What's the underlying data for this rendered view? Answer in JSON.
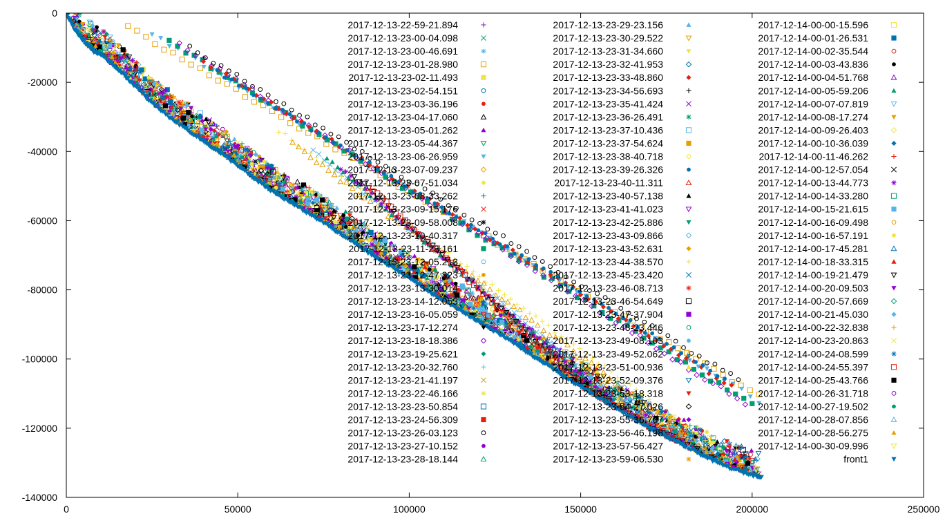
{
  "chart_data": {
    "type": "scatter",
    "title": "",
    "xlabel": "",
    "ylabel": "",
    "xlim": [
      0,
      250000
    ],
    "ylim": [
      -140000,
      0
    ],
    "x_ticks": [
      0,
      50000,
      100000,
      150000,
      200000,
      250000
    ],
    "y_ticks": [
      0,
      -20000,
      -40000,
      -60000,
      -80000,
      -100000,
      -120000,
      -140000
    ],
    "grid": false,
    "legend_placement": "inside, top-right, three columns",
    "colors": [
      "#9400d3",
      "#009e73",
      "#56b4e9",
      "#e69f00",
      "#f0e442",
      "#0072b2",
      "#e51e10",
      "#000000"
    ],
    "legend": [
      {
        "name": "2017-12-13-22-59-21.894",
        "marker": "plus",
        "color": "#9400d3"
      },
      {
        "name": "2017-12-13-23-00-04.098",
        "marker": "cross",
        "color": "#009e73"
      },
      {
        "name": "2017-12-13-23-00-46.691",
        "marker": "star",
        "color": "#56b4e9"
      },
      {
        "name": "2017-12-13-23-01-28.980",
        "marker": "square-open",
        "color": "#e69f00"
      },
      {
        "name": "2017-12-13-23-02-11.493",
        "marker": "square-filled",
        "color": "#f0e442"
      },
      {
        "name": "2017-12-13-23-02-54.151",
        "marker": "circle-open",
        "color": "#0072b2"
      },
      {
        "name": "2017-12-13-23-03-36.196",
        "marker": "circle-filled",
        "color": "#e51e10"
      },
      {
        "name": "2017-12-13-23-04-17.060",
        "marker": "triangle-open",
        "color": "#000000"
      },
      {
        "name": "2017-12-13-23-05-01.262",
        "marker": "triangle-filled",
        "color": "#9400d3"
      },
      {
        "name": "2017-12-13-23-05-44.367",
        "marker": "triangle-down-open",
        "color": "#009e73"
      },
      {
        "name": "2017-12-13-23-06-26.959",
        "marker": "triangle-down-filled",
        "color": "#56b4e9"
      },
      {
        "name": "2017-12-13-23-07-09.237",
        "marker": "diamond-open",
        "color": "#e69f00"
      },
      {
        "name": "2017-12-13-23-07-51.034",
        "marker": "diamond-filled",
        "color": "#f0e442"
      },
      {
        "name": "2017-12-13-23-08-33.262",
        "marker": "plus",
        "color": "#0072b2"
      },
      {
        "name": "2017-12-13-23-09-15.176",
        "marker": "cross",
        "color": "#e51e10"
      },
      {
        "name": "2017-12-13-23-09-58.008",
        "marker": "star",
        "color": "#000000"
      },
      {
        "name": "2017-12-13-23-10-40.317",
        "marker": "square-open",
        "color": "#9400d3"
      },
      {
        "name": "2017-12-13-23-11-23.161",
        "marker": "square-filled",
        "color": "#009e73"
      },
      {
        "name": "2017-12-13-23-12-05.213",
        "marker": "circle-open",
        "color": "#56b4e9"
      },
      {
        "name": "2017-12-13-23-12-47.323",
        "marker": "circle-filled",
        "color": "#e69f00"
      },
      {
        "name": "2017-12-13-23-13-30.014",
        "marker": "triangle-open",
        "color": "#f0e442"
      },
      {
        "name": "2017-12-13-23-14-12.053",
        "marker": "triangle-filled",
        "color": "#0072b2"
      },
      {
        "name": "2017-12-13-23-16-05.059",
        "marker": "triangle-down-open",
        "color": "#e51e10"
      },
      {
        "name": "2017-12-13-23-17-12.274",
        "marker": "triangle-down-filled",
        "color": "#000000"
      },
      {
        "name": "2017-12-13-23-18-18.386",
        "marker": "diamond-open",
        "color": "#9400d3"
      },
      {
        "name": "2017-12-13-23-19-25.621",
        "marker": "diamond-filled",
        "color": "#009e73"
      },
      {
        "name": "2017-12-13-23-20-32.760",
        "marker": "plus",
        "color": "#56b4e9"
      },
      {
        "name": "2017-12-13-23-21-41.197",
        "marker": "cross",
        "color": "#e69f00"
      },
      {
        "name": "2017-12-13-23-22-46.166",
        "marker": "star",
        "color": "#f0e442"
      },
      {
        "name": "2017-12-13-23-23-50.854",
        "marker": "square-open",
        "color": "#0072b2"
      },
      {
        "name": "2017-12-13-23-24-56.309",
        "marker": "square-filled",
        "color": "#e51e10"
      },
      {
        "name": "2017-12-13-23-26-03.123",
        "marker": "circle-open",
        "color": "#000000"
      },
      {
        "name": "2017-12-13-23-27-10.152",
        "marker": "circle-filled",
        "color": "#9400d3"
      },
      {
        "name": "2017-12-13-23-28-18.144",
        "marker": "triangle-open",
        "color": "#009e73"
      },
      {
        "name": "2017-12-13-23-29-23.156",
        "marker": "triangle-filled",
        "color": "#56b4e9"
      },
      {
        "name": "2017-12-13-23-30-29.522",
        "marker": "triangle-down-open",
        "color": "#e69f00"
      },
      {
        "name": "2017-12-13-23-31-34.660",
        "marker": "triangle-down-filled",
        "color": "#f0e442"
      },
      {
        "name": "2017-12-13-23-32-41.953",
        "marker": "diamond-open",
        "color": "#0072b2"
      },
      {
        "name": "2017-12-13-23-33-48.860",
        "marker": "diamond-filled",
        "color": "#e51e10"
      },
      {
        "name": "2017-12-13-23-34-56.693",
        "marker": "plus",
        "color": "#000000"
      },
      {
        "name": "2017-12-13-23-35-41.424",
        "marker": "cross",
        "color": "#9400d3"
      },
      {
        "name": "2017-12-13-23-36-26.491",
        "marker": "star",
        "color": "#009e73"
      },
      {
        "name": "2017-12-13-23-37-10.436",
        "marker": "square-open",
        "color": "#56b4e9"
      },
      {
        "name": "2017-12-13-23-37-54.624",
        "marker": "square-filled",
        "color": "#e69f00"
      },
      {
        "name": "2017-12-13-23-38-40.718",
        "marker": "circle-open",
        "color": "#f0e442"
      },
      {
        "name": "2017-12-13-23-39-26.326",
        "marker": "circle-filled",
        "color": "#0072b2"
      },
      {
        "name": "2017-12-13-23-40-11.311",
        "marker": "triangle-open",
        "color": "#e51e10"
      },
      {
        "name": "2017-12-13-23-40-57.138",
        "marker": "triangle-filled",
        "color": "#000000"
      },
      {
        "name": "2017-12-13-23-41-41.023",
        "marker": "triangle-down-open",
        "color": "#9400d3"
      },
      {
        "name": "2017-12-13-23-42-25.886",
        "marker": "triangle-down-filled",
        "color": "#009e73"
      },
      {
        "name": "2017-12-13-23-43-09.866",
        "marker": "diamond-open",
        "color": "#56b4e9"
      },
      {
        "name": "2017-12-13-23-43-52.631",
        "marker": "diamond-filled",
        "color": "#e69f00"
      },
      {
        "name": "2017-12-13-23-44-38.570",
        "marker": "plus",
        "color": "#f0e442"
      },
      {
        "name": "2017-12-13-23-45-23.420",
        "marker": "cross",
        "color": "#0072b2"
      },
      {
        "name": "2017-12-13-23-46-08.713",
        "marker": "star",
        "color": "#e51e10"
      },
      {
        "name": "2017-12-13-23-46-54.649",
        "marker": "square-open",
        "color": "#000000"
      },
      {
        "name": "2017-12-13-23-47-37.904",
        "marker": "square-filled",
        "color": "#9400d3"
      },
      {
        "name": "2017-12-13-23-48-23.446",
        "marker": "circle-open",
        "color": "#009e73"
      },
      {
        "name": "2017-12-13-23-49-08.103",
        "marker": "circle-filled",
        "color": "#56b4e9"
      },
      {
        "name": "2017-12-13-23-49-52.062",
        "marker": "triangle-open",
        "color": "#e69f00"
      },
      {
        "name": "2017-12-13-23-51-00.936",
        "marker": "triangle-filled",
        "color": "#f0e442"
      },
      {
        "name": "2017-12-13-23-52-09.376",
        "marker": "triangle-down-open",
        "color": "#0072b2"
      },
      {
        "name": "2017-12-13-23-53-18.318",
        "marker": "triangle-down-filled",
        "color": "#e51e10"
      },
      {
        "name": "2017-12-13-23-54-27.026",
        "marker": "diamond-open",
        "color": "#000000"
      },
      {
        "name": "2017-12-13-23-55-36.767",
        "marker": "diamond-filled",
        "color": "#9400d3"
      },
      {
        "name": "2017-12-13-23-56-46.198",
        "marker": "plus",
        "color": "#009e73"
      },
      {
        "name": "2017-12-13-23-57-56.427",
        "marker": "cross",
        "color": "#56b4e9"
      },
      {
        "name": "2017-12-13-23-59-06.530",
        "marker": "star",
        "color": "#e69f00"
      },
      {
        "name": "2017-12-14-00-00-15.596",
        "marker": "square-open",
        "color": "#f0e442"
      },
      {
        "name": "2017-12-14-00-01-26.531",
        "marker": "square-filled",
        "color": "#0072b2"
      },
      {
        "name": "2017-12-14-00-02-35.544",
        "marker": "circle-open",
        "color": "#e51e10"
      },
      {
        "name": "2017-12-14-00-03-43.836",
        "marker": "circle-filled",
        "color": "#000000"
      },
      {
        "name": "2017-12-14-00-04-51.768",
        "marker": "triangle-open",
        "color": "#9400d3"
      },
      {
        "name": "2017-12-14-00-05-59.206",
        "marker": "triangle-filled",
        "color": "#009e73"
      },
      {
        "name": "2017-12-14-00-07-07.819",
        "marker": "triangle-down-open",
        "color": "#56b4e9"
      },
      {
        "name": "2017-12-14-00-08-17.274",
        "marker": "triangle-down-filled",
        "color": "#e69f00"
      },
      {
        "name": "2017-12-14-00-09-26.403",
        "marker": "diamond-open",
        "color": "#f0e442"
      },
      {
        "name": "2017-12-14-00-10-36.039",
        "marker": "diamond-filled",
        "color": "#0072b2"
      },
      {
        "name": "2017-12-14-00-11-46.262",
        "marker": "plus",
        "color": "#e51e10"
      },
      {
        "name": "2017-12-14-00-12-57.054",
        "marker": "cross",
        "color": "#000000"
      },
      {
        "name": "2017-12-14-00-13-44.773",
        "marker": "star",
        "color": "#9400d3"
      },
      {
        "name": "2017-12-14-00-14-33.280",
        "marker": "square-open",
        "color": "#009e73"
      },
      {
        "name": "2017-12-14-00-15-21.615",
        "marker": "square-filled",
        "color": "#56b4e9"
      },
      {
        "name": "2017-12-14-00-16-09.498",
        "marker": "circle-open",
        "color": "#e69f00"
      },
      {
        "name": "2017-12-14-00-16-57.191",
        "marker": "circle-filled",
        "color": "#f0e442"
      },
      {
        "name": "2017-12-14-00-17-45.281",
        "marker": "triangle-open",
        "color": "#0072b2"
      },
      {
        "name": "2017-12-14-00-18-33.315",
        "marker": "triangle-filled",
        "color": "#e51e10"
      },
      {
        "name": "2017-12-14-00-19-21.479",
        "marker": "triangle-down-open",
        "color": "#000000"
      },
      {
        "name": "2017-12-14-00-20-09.503",
        "marker": "triangle-down-filled",
        "color": "#9400d3"
      },
      {
        "name": "2017-12-14-00-20-57.669",
        "marker": "diamond-open",
        "color": "#009e73"
      },
      {
        "name": "2017-12-14-00-21-45.030",
        "marker": "diamond-filled",
        "color": "#56b4e9"
      },
      {
        "name": "2017-12-14-00-22-32.838",
        "marker": "plus",
        "color": "#e69f00"
      },
      {
        "name": "2017-12-14-00-23-20.863",
        "marker": "cross",
        "color": "#f0e442"
      },
      {
        "name": "2017-12-14-00-24-08.599",
        "marker": "star",
        "color": "#0072b2"
      },
      {
        "name": "2017-12-14-00-24-55.397",
        "marker": "square-open",
        "color": "#e51e10"
      },
      {
        "name": "2017-12-14-00-25-43.766",
        "marker": "square-filled",
        "color": "#000000"
      },
      {
        "name": "2017-12-14-00-26-31.718",
        "marker": "circle-open",
        "color": "#9400d3"
      },
      {
        "name": "2017-12-14-00-27-19.502",
        "marker": "circle-filled",
        "color": "#009e73"
      },
      {
        "name": "2017-12-14-00-28-07.856",
        "marker": "triangle-open",
        "color": "#56b4e9"
      },
      {
        "name": "2017-12-14-00-28-56.275",
        "marker": "triangle-filled",
        "color": "#e69f00"
      },
      {
        "name": "2017-12-14-00-30-09.996",
        "marker": "triangle-down-open",
        "color": "#f0e442"
      },
      {
        "name": "front1",
        "marker": "triangle-down-filled",
        "color": "#0072b2"
      }
    ],
    "front": {
      "name": "front1",
      "x": [
        0,
        2000,
        5000,
        8000,
        12000,
        16000,
        20000,
        25000,
        30000,
        35000,
        40000,
        45000,
        50000,
        55000,
        60000,
        65000,
        70000,
        75000,
        80000,
        85000,
        90000,
        95000,
        100000,
        105000,
        110000,
        115000,
        120000,
        125000,
        130000,
        135000,
        140000,
        145000,
        150000,
        155000,
        160000,
        165000,
        170000,
        175000,
        180000,
        185000,
        190000,
        195000,
        200000,
        203000
      ],
      "y": [
        0,
        -4000,
        -8000,
        -11000,
        -13500,
        -17000,
        -21000,
        -26000,
        -30000,
        -33500,
        -37000,
        -40500,
        -44000,
        -48000,
        -51500,
        -54500,
        -57500,
        -60500,
        -64000,
        -67000,
        -70500,
        -73500,
        -76500,
        -80000,
        -83000,
        -86000,
        -89000,
        -92000,
        -95000,
        -98500,
        -101500,
        -105000,
        -108000,
        -111000,
        -114000,
        -117000,
        -120000,
        -122500,
        -125000,
        -127500,
        -130000,
        -132000,
        -133500,
        -134000
      ]
    },
    "runs": [
      {
        "x0": 18000,
        "y0": -4000,
        "x_end": 202000,
        "drop_rate": 0.58
      },
      {
        "x0": 25000,
        "y0": -6000,
        "x_end": 202000,
        "drop_rate": 0.6
      },
      {
        "x0": 30000,
        "y0": -8000,
        "x_end": 200000,
        "drop_rate": 0.62
      },
      {
        "x0": 33000,
        "y0": -9000,
        "x_end": 198000,
        "drop_rate": 0.63
      },
      {
        "x0": 36000,
        "y0": -10000,
        "x_end": 196000,
        "drop_rate": 0.6
      },
      {
        "x0": 40000,
        "y0": -14000,
        "x_end": 194000,
        "drop_rate": 0.61
      },
      {
        "x0": 44000,
        "y0": -17000,
        "x_end": 192000,
        "drop_rate": 0.6
      },
      {
        "x0": 62000,
        "y0": -34000,
        "x_end": 190000,
        "drop_rate": 0.72
      },
      {
        "x0": 66000,
        "y0": -38000,
        "x_end": 188000,
        "drop_rate": 0.73
      },
      {
        "x0": 72000,
        "y0": -40000,
        "x_end": 186000,
        "drop_rate": 0.8
      },
      {
        "x0": 76000,
        "y0": -42000,
        "x_end": 186000,
        "drop_rate": 0.85
      },
      {
        "x0": 80000,
        "y0": -45000,
        "x_end": 184000,
        "drop_rate": 0.85
      },
      {
        "x0": 84000,
        "y0": -47000,
        "x_end": 184000,
        "drop_rate": 0.9
      },
      {
        "x0": 88000,
        "y0": -50000,
        "x_end": 182000,
        "drop_rate": 0.92
      }
    ]
  }
}
